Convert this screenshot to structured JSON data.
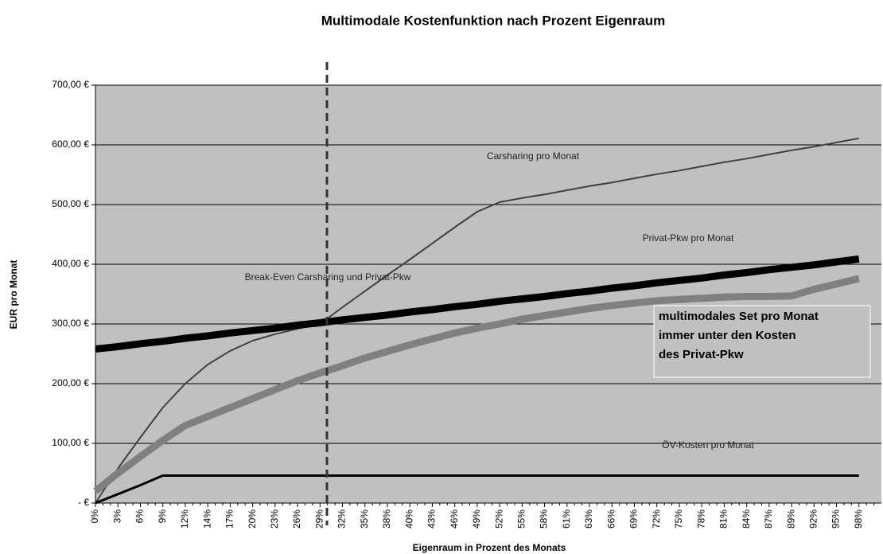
{
  "chart_data": {
    "type": "line",
    "title": "Multimodale Kostenfunktion nach Prozent Eigenraum",
    "x_label": "Eigenraum in Prozent des Monats",
    "y_label": "EUR pro Monat",
    "categories": [
      "0%",
      "3%",
      "6%",
      "9%",
      "12%",
      "14%",
      "17%",
      "20%",
      "23%",
      "26%",
      "29%",
      "32%",
      "35%",
      "38%",
      "40%",
      "43%",
      "46%",
      "49%",
      "52%",
      "55%",
      "58%",
      "61%",
      "63%",
      "66%",
      "69%",
      "72%",
      "75%",
      "78%",
      "81%",
      "84%",
      "87%",
      "89%",
      "92%",
      "95%",
      "98%"
    ],
    "series": [
      {
        "name": "Carsharing pro Monat",
        "color": "#404040",
        "values": [
          0,
          58,
          110,
          160,
          200,
          232,
          255,
          272,
          283,
          292,
          300,
          328,
          355,
          382,
          408,
          435,
          462,
          488,
          504,
          511,
          517,
          524,
          531,
          537,
          544,
          551,
          557,
          564,
          571,
          577,
          584,
          591,
          597,
          604,
          611
        ]
      },
      {
        "name": "Privat-Pkw pro Monat",
        "color": "#000000",
        "values": [
          258,
          262,
          267,
          271,
          276,
          280,
          285,
          289,
          293,
          298,
          302,
          307,
          311,
          315,
          320,
          324,
          329,
          333,
          338,
          342,
          346,
          351,
          355,
          360,
          364,
          369,
          373,
          377,
          382,
          386,
          391,
          395,
          399,
          404,
          409
        ]
      },
      {
        "name": "multimodales Set pro Monat",
        "color": "#808080",
        "values": [
          20,
          50,
          78,
          105,
          130,
          145,
          160,
          175,
          190,
          205,
          218,
          230,
          243,
          254,
          265,
          275,
          285,
          293,
          300,
          308,
          314,
          320,
          326,
          331,
          335,
          339,
          341,
          343,
          345,
          346,
          346,
          347,
          358,
          367,
          376
        ]
      },
      {
        "name": "ÖV-Kosten pro Monat",
        "color": "#000000",
        "values": [
          0,
          15,
          30,
          46,
          46,
          46,
          46,
          46,
          46,
          46,
          46,
          46,
          46,
          46,
          46,
          46,
          46,
          46,
          46,
          46,
          46,
          46,
          46,
          46,
          46,
          46,
          46,
          46,
          46,
          46,
          46,
          46,
          46,
          46,
          46
        ]
      }
    ],
    "annotations": [
      "Break-Even Carsharing und Privat-Pkw"
    ],
    "box_annotation": [
      "multimodales Set pro Monat",
      "immer unter den Kosten",
      "des Privat-Pkw"
    ],
    "ylim": [
      0,
      700
    ],
    "yticks": [
      {
        "value": 0,
        "label": "-   €"
      },
      {
        "value": 100,
        "label": "100,00 €"
      },
      {
        "value": 200,
        "label": "200,00 €"
      },
      {
        "value": 300,
        "label": "300,00 €"
      },
      {
        "value": 400,
        "label": "400,00 €"
      },
      {
        "value": 500,
        "label": "500,00 €"
      },
      {
        "value": 600,
        "label": "600,00 €"
      },
      {
        "value": 700,
        "label": "700,00 €"
      }
    ],
    "grid": true,
    "background": "#c0c0c0"
  }
}
